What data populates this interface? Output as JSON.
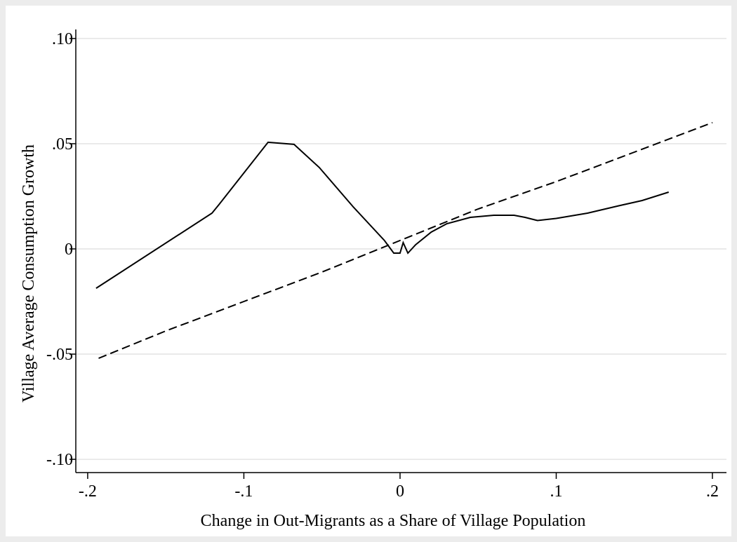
{
  "chart_data": {
    "type": "line",
    "xlabel": "Change in Out-Migrants as a Share of Village Population",
    "ylabel": "Village Average Consumption Growth",
    "xlim": [
      -0.2076,
      0.209
    ],
    "ylim": [
      -0.1063,
      0.1043
    ],
    "xticks": [
      {
        "value": -0.2,
        "label": "-.2"
      },
      {
        "value": -0.1,
        "label": "-.1"
      },
      0,
      {
        "value": 0.1,
        "label": ".1"
      },
      {
        "value": 0.2,
        "label": ".2"
      }
    ],
    "yticks": [
      {
        "value": -0.1,
        "label": "-.10"
      },
      {
        "value": -0.05,
        "label": "-.05"
      },
      0,
      {
        "value": 0.05,
        "label": ".05"
      },
      {
        "value": 0.1,
        "label": ".10"
      }
    ],
    "grid": true,
    "series": [
      {
        "color": "#000000",
        "line_style": "solid",
        "x": [
          -0.1946,
          -0.1204,
          -0.116,
          -0.0845,
          -0.0679,
          -0.0517,
          -0.03,
          -0.01,
          -0.004,
          0.0,
          0.002,
          0.005,
          0.01,
          0.02,
          0.03,
          0.045,
          0.06,
          0.073,
          0.08,
          0.088,
          0.1,
          0.12,
          0.14,
          0.155,
          0.172
        ],
        "values": [
          -0.0187,
          0.017,
          0.021,
          0.0507,
          0.0497,
          0.0387,
          0.02,
          0.004,
          -0.002,
          -0.002,
          0.003,
          -0.002,
          0.002,
          0.008,
          0.012,
          0.015,
          0.016,
          0.016,
          0.015,
          0.0135,
          0.0145,
          0.017,
          0.0205,
          0.023,
          0.027
        ]
      },
      {
        "color": "#000000",
        "line_style": "dashed",
        "x": [
          -0.193,
          -0.15,
          -0.1,
          -0.05,
          0.0,
          0.05,
          0.1,
          0.15,
          0.2
        ],
        "values": [
          -0.052,
          -0.039,
          -0.025,
          -0.011,
          0.004,
          0.019,
          0.032,
          0.046,
          0.06
        ]
      }
    ]
  }
}
